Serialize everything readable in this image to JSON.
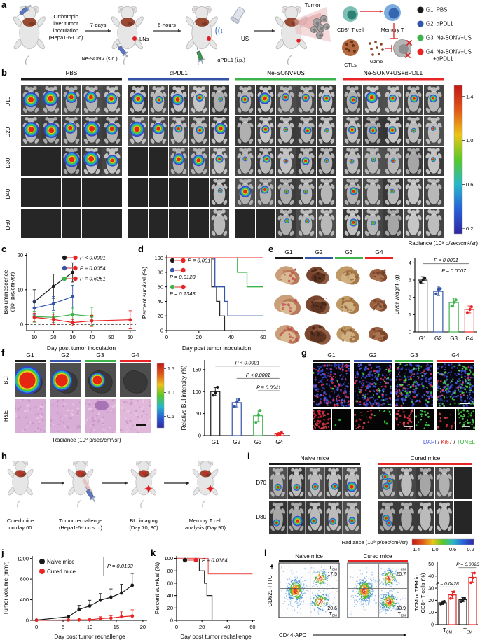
{
  "panels": {
    "a": "a",
    "b": "b",
    "c": "c",
    "d": "d",
    "e": "e",
    "f": "f",
    "g": "g",
    "h": "h",
    "i": "i",
    "j": "j",
    "k": "k",
    "l": "l"
  },
  "groups_short": [
    {
      "name": "G1",
      "color": "#1a1a1a"
    },
    {
      "name": "G2",
      "color": "#3454a8"
    },
    {
      "name": "G3",
      "color": "#3cb44a"
    },
    {
      "name": "G4",
      "color": "#e82424"
    }
  ],
  "panel_a": {
    "intro_lines": [
      "Orthotopic",
      "liver tumor",
      "inoculation",
      "(Hepa1-6-Luc)"
    ],
    "arrow1_label": "7-days",
    "arrow2_label": "6-hours",
    "lns_label": "LNs",
    "nesonv_label": "Ne-SONV (s.c.)",
    "apdl1_label": "αPDL1 (i.p.)",
    "us_label": "US",
    "tumor_label": "Tumor",
    "cd8_label": "CD8⁺ T cell",
    "memory_label": "Memory T",
    "ctls_label": "CTLs",
    "gzmb_label": "Gzmb",
    "legend": [
      {
        "lines": [
          "G1: PBS"
        ],
        "color": "#1a1a1a"
      },
      {
        "lines": [
          "G2: αPDL1"
        ],
        "color": "#3454a8"
      },
      {
        "lines": [
          "G3: Ne-SONV+US"
        ],
        "color": "#3cb44a"
      },
      {
        "lines": [
          "G4: Ne-SONV+US",
          "+αPDL1"
        ],
        "color": "#e82424"
      }
    ]
  },
  "panel_b": {
    "groups": [
      {
        "name": "PBS",
        "color": "#1a1a1a"
      },
      {
        "name": "αPDL1",
        "color": "#3454a8"
      },
      {
        "name": "Ne-SONV+US",
        "color": "#3cb44a"
      },
      {
        "name": "Ne-SONV+US+αPDL1",
        "color": "#e82424"
      }
    ],
    "days": [
      "D10",
      "D20",
      "D30",
      "D40",
      "D60"
    ],
    "grid": [
      [
        [
          4,
          4,
          3,
          3,
          3
        ],
        [
          4,
          4,
          3,
          4,
          3
        ],
        [
          -1,
          -1,
          4,
          4,
          3
        ],
        [
          -1,
          -1,
          -1,
          -1,
          -1
        ],
        [
          -1,
          -1,
          -1,
          -1,
          -1
        ]
      ],
      [
        [
          3,
          2,
          3,
          2,
          1
        ],
        [
          4,
          3,
          2,
          2,
          3
        ],
        [
          -1,
          -1,
          3,
          3,
          2
        ],
        [
          -1,
          -1,
          -1,
          -1,
          1
        ],
        [
          -1,
          -1,
          -1,
          -1,
          0
        ]
      ],
      [
        [
          2,
          3,
          2,
          2,
          2
        ],
        [
          0,
          2,
          1,
          2,
          1
        ],
        [
          1,
          2,
          1,
          2,
          1
        ],
        [
          3,
          2,
          1,
          1,
          0
        ],
        [
          -1,
          -1,
          1,
          1,
          0
        ]
      ],
      [
        [
          2,
          3,
          2,
          2,
          2
        ],
        [
          2,
          2,
          2,
          1,
          1
        ],
        [
          1,
          1,
          1,
          0,
          1
        ],
        [
          2,
          0,
          1,
          0,
          0
        ],
        [
          2,
          1,
          0,
          0,
          0
        ]
      ]
    ],
    "colorbar": {
      "ticks": [
        "1.4",
        "1.0",
        "0.6",
        "0.2"
      ],
      "label": "Radiance (10⁹ p/sec/cm²/sr)",
      "palette": [
        "#c01818",
        "#e05818",
        "#ecc418",
        "#58c828",
        "#28b8c8",
        "#2860d8",
        "#3028a0"
      ]
    }
  },
  "panel_e": {
    "rows": 3
  },
  "panel_f": {
    "row_labels": [
      "BLI",
      "H&E"
    ],
    "bli_levels": [
      4,
      3,
      2,
      0
    ],
    "colorbar": {
      "ticks": [
        "1.5",
        "1.0",
        "0.5"
      ],
      "label": "Radiance (10⁸ p/sec/cm²/sr)"
    }
  },
  "panel_g": {
    "ki67_merged": [
      70,
      48,
      40,
      20
    ],
    "tunel_merged": [
      5,
      26,
      46,
      78
    ],
    "ki67_tile": [
      55,
      22,
      38,
      12
    ],
    "tunel_tile": [
      2,
      10,
      18,
      40
    ],
    "caption": [
      {
        "text": "DAPI",
        "color": "#4858e0"
      },
      {
        "text": " / ",
        "color": "#111111"
      },
      {
        "text": "Ki67",
        "color": "#e82828"
      },
      {
        "text": " / ",
        "color": "#111111"
      },
      {
        "text": "TUNEL",
        "color": "#38b838"
      }
    ]
  },
  "panel_h": {
    "steps": [
      {
        "lines": [
          "Cured mice",
          "on day 60"
        ]
      },
      {
        "lines": [
          "Tumor rechallenge",
          "(Hepa1-6-Luc s.c.)"
        ]
      },
      {
        "lines": [
          "BLI imaging",
          "(Day 70, 80)"
        ]
      },
      {
        "lines": [
          "Memory T cell",
          "analysis (Day 90)"
        ]
      }
    ]
  },
  "panel_i": {
    "groups": [
      {
        "name": "Naive mice",
        "color": "#1a1a1a"
      },
      {
        "name": "Cured mice",
        "color": "#e82424"
      }
    ],
    "days": [
      "D70",
      "D80"
    ],
    "grid_naive": [
      [
        2,
        2,
        2,
        2,
        3
      ],
      [
        2,
        3,
        2,
        2,
        2
      ]
    ],
    "grid_cured": [
      [
        5,
        0,
        0,
        0,
        -1
      ],
      [
        4,
        0,
        0,
        0,
        -1
      ]
    ],
    "colorbar": {
      "ticks": [
        "1.4",
        "1.0",
        "0.6",
        "0.2"
      ],
      "label": "Radiance (10⁹ p/sec/cm²/sr)"
    }
  },
  "panel_l": {
    "plots": [
      {
        "title": "Naive mice",
        "color": "#1a1a1a",
        "tcm_value": "17.5",
        "tem_value": "20.6"
      },
      {
        "title": "Cured mice",
        "color": "#e82424",
        "tcm_value": "20.7",
        "tem_value": "33.9"
      }
    ],
    "tcm_label": "TCM",
    "tem_label": "TEM",
    "xlabel": "CD44-APC",
    "ylabel": "CD62L-FITC"
  },
  "chart_data": [
    {
      "id": "bioluminescence",
      "type": "line",
      "xlabel": "Day post tumor inoculation",
      "ylabel": [
        "Bioluminescence",
        "(10⁷ p/s/cm²/sr)"
      ],
      "xlim": [
        6,
        63
      ],
      "ylim": [
        -1.8,
        20.5
      ],
      "xticks": [
        10,
        20,
        30,
        40,
        50,
        60
      ],
      "yticks": [
        0,
        10,
        20
      ],
      "zero_dashed": true,
      "series": [
        {
          "name": "G1: PBS",
          "color": "#1a1a1a",
          "x": [
            10,
            20,
            30
          ],
          "y": [
            6.5,
            11,
            15
          ],
          "err": [
            3.5,
            3.5,
            2.8
          ]
        },
        {
          "name": "G2: αPDL1",
          "color": "#3454a8",
          "x": [
            10,
            20,
            30
          ],
          "y": [
            4.7,
            6.0,
            8.0
          ],
          "err": [
            2.0,
            2.0,
            3.3
          ]
        },
        {
          "name": "G3: Ne-SONV+US",
          "color": "#3cb44a",
          "x": [
            10,
            20,
            30,
            40
          ],
          "y": [
            2.2,
            2.0,
            2.8,
            2.3
          ],
          "err": [
            1.6,
            1.5,
            1.9,
            2.6
          ]
        },
        {
          "name": "G4: Ne-SONV+US+αPDL1",
          "color": "#e82424",
          "x": [
            10,
            20,
            30,
            40,
            60
          ],
          "y": [
            2.0,
            1.4,
            0.5,
            1.0,
            1.3
          ],
          "err": [
            1.2,
            1.5,
            0.9,
            1.6,
            2.6
          ]
        }
      ],
      "comparisons": [
        {
          "c1": "#1a1a1a",
          "c2": "#e82424",
          "text": "P < 0.0001"
        },
        {
          "c1": "#3454a8",
          "c2": "#e82424",
          "text": "P = 0.0054"
        },
        {
          "c1": "#3cb44a",
          "c2": "#e82424",
          "text": "P = 0.6251"
        }
      ]
    },
    {
      "id": "survival_inoculation",
      "type": "step",
      "xlabel": "Day post tumor inoculation",
      "ylabel": "Percent survival (%)",
      "xlim": [
        0,
        62
      ],
      "ylim": [
        0,
        104
      ],
      "xticks": [
        0,
        20,
        40,
        60
      ],
      "yticks": [
        0,
        20,
        40,
        60,
        80,
        100
      ],
      "series": [
        {
          "name": "G1",
          "color": "#2a2a2a",
          "points": [
            [
              0,
              100
            ],
            [
              28,
              100
            ],
            [
              28,
              60
            ],
            [
              31,
              60
            ],
            [
              31,
              40
            ],
            [
              33,
              40
            ],
            [
              33,
              20
            ],
            [
              36,
              20
            ],
            [
              36,
              0
            ]
          ]
        },
        {
          "name": "G2",
          "color": "#3454a8",
          "points": [
            [
              0,
              100
            ],
            [
              30,
              100
            ],
            [
              30,
              60
            ],
            [
              36,
              60
            ],
            [
              36,
              40
            ],
            [
              38,
              40
            ],
            [
              38,
              20
            ],
            [
              60,
              20
            ]
          ]
        },
        {
          "name": "G3",
          "color": "#3cb44a",
          "points": [
            [
              0,
              100
            ],
            [
              44,
              100
            ],
            [
              44,
              80
            ],
            [
              50,
              80
            ],
            [
              50,
              60
            ],
            [
              60,
              60
            ]
          ]
        },
        {
          "name": "G4",
          "color": "#e82424",
          "points": [
            [
              0,
              100
            ],
            [
              60,
              100
            ]
          ]
        }
      ],
      "comparisons": [
        {
          "c1": "#1a1a1a",
          "c2": "#e82424",
          "text": "P = 0.0017"
        },
        {
          "c1": "#3454a8",
          "c2": "#e82424",
          "text": "P = 0.0128"
        },
        {
          "c1": "#3cb44a",
          "c2": "#e82424",
          "text": "P = 0.1343"
        }
      ]
    },
    {
      "id": "liver_weight",
      "type": "bar",
      "ylabel": "Liver weight (g)",
      "categories": [
        "G1",
        "G2",
        "G3",
        "G4"
      ],
      "colors": [
        "#1a1a1a",
        "#3454a8",
        "#3cb44a",
        "#e82424"
      ],
      "values": [
        3.0,
        2.35,
        1.7,
        1.3
      ],
      "errors": [
        0.2,
        0.25,
        0.25,
        0.2
      ],
      "dots": [
        [
          2.88,
          3.0,
          3.12
        ],
        [
          2.2,
          2.45,
          2.5
        ],
        [
          1.5,
          1.72,
          1.85
        ],
        [
          1.12,
          1.3,
          1.45
        ]
      ],
      "ylim": [
        0,
        4.3
      ],
      "yticks": [
        0,
        1,
        2,
        3,
        4
      ],
      "comparisons": [
        {
          "from": 0,
          "to": 3,
          "y": 3.95,
          "text": "P < 0.0001"
        },
        {
          "from": 1,
          "to": 3,
          "y": 3.35,
          "text": "P = 0.0007"
        }
      ]
    },
    {
      "id": "bli_intensity",
      "type": "bar",
      "ylabel": "Relative BLI intensity (%)",
      "categories": [
        "G1",
        "G2",
        "G3",
        "G4"
      ],
      "colors": [
        "#1a1a1a",
        "#3454a8",
        "#3cb44a",
        "#e82424"
      ],
      "values": [
        100,
        75,
        45,
        4
      ],
      "errors": [
        9,
        10,
        13,
        3
      ],
      "dots": [
        [
          92,
          97,
          110
        ],
        [
          66,
          77,
          82
        ],
        [
          30,
          47,
          57
        ],
        [
          1,
          3,
          7
        ]
      ],
      "ylim": [
        0,
        172
      ],
      "yticks": [
        0,
        50,
        100,
        150
      ],
      "comparisons": [
        {
          "from": 0,
          "to": 3,
          "y": 158,
          "text": "P < 0.0001"
        },
        {
          "from": 1,
          "to": 3,
          "y": 130,
          "text": "P < 0.0001"
        },
        {
          "from": 2,
          "to": 3,
          "y": 102,
          "text": "P = 0.0041"
        }
      ]
    },
    {
      "id": "tumor_volume",
      "type": "line",
      "xlabel": "Day post tumor rechallenge",
      "ylabel": "Tumor volume (mm³)",
      "xlim": [
        -0.8,
        20.8
      ],
      "ylim": [
        0,
        1250
      ],
      "xticks": [
        0,
        5,
        10,
        15,
        20
      ],
      "yticks": [
        0,
        400,
        800,
        1200
      ],
      "pvalue": "P = 0.0193",
      "series": [
        {
          "name": "Naive mice",
          "color": "#1a1a1a",
          "x": [
            0,
            6,
            8,
            10,
            12,
            14,
            16,
            18
          ],
          "y": [
            5,
            70,
            210,
            280,
            390,
            450,
            530,
            680
          ],
          "err": [
            0,
            30,
            80,
            110,
            130,
            160,
            170,
            230
          ]
        },
        {
          "name": "Cured mice",
          "color": "#e82424",
          "x": [
            0,
            6,
            8,
            10,
            12,
            14,
            16,
            18
          ],
          "y": [
            2,
            8,
            10,
            12,
            35,
            45,
            70,
            85
          ],
          "err": [
            0,
            8,
            12,
            15,
            35,
            45,
            95,
            120
          ]
        }
      ]
    },
    {
      "id": "survival_rechallenge",
      "type": "step",
      "xlabel": "Day post tumor rechallenge",
      "ylabel": "Percent survival (%)",
      "xlim": [
        0,
        62
      ],
      "ylim": [
        0,
        104
      ],
      "xticks": [
        0,
        20,
        40,
        60
      ],
      "yticks": [
        0,
        20,
        40,
        60,
        80,
        100
      ],
      "pvalue": "P = 0.0384",
      "series": [
        {
          "name": "Naive mice",
          "color": "#2a2a2a",
          "points": [
            [
              0,
              100
            ],
            [
              18,
              100
            ],
            [
              18,
              80
            ],
            [
              22,
              80
            ],
            [
              22,
              60
            ],
            [
              24,
              60
            ],
            [
              24,
              40
            ],
            [
              28,
              40
            ],
            [
              28,
              0
            ]
          ]
        },
        {
          "name": "Cured mice",
          "color": "#ef6a6a",
          "points": [
            [
              0,
              100
            ],
            [
              25,
              100
            ],
            [
              25,
              75
            ],
            [
              60,
              75
            ]
          ]
        }
      ]
    },
    {
      "id": "tcm_tem",
      "type": "grouped_bar",
      "ylabel": [
        "TCM or TEM in",
        "CD8⁺ T cells (%)"
      ],
      "categories": [
        "TCM",
        "TEM"
      ],
      "ylim": [
        0,
        52
      ],
      "yticks": [
        0,
        10,
        20,
        30,
        40,
        50
      ],
      "series": [
        {
          "name": "Naive mice",
          "color": "#1a1a1a",
          "values": [
            18,
            20.5
          ],
          "errors": [
            1.5,
            1.8
          ],
          "dots": [
            [
              16.8,
              18,
              19.2
            ],
            [
              19,
              20.3,
              22
            ]
          ]
        },
        {
          "name": "Cured mice",
          "color": "#e82424",
          "values": [
            24.5,
            39
          ],
          "errors": [
            3,
            4
          ],
          "dots": [
            [
              21.5,
              24.5,
              27
            ],
            [
              34.5,
              38.5,
              42.5
            ]
          ]
        }
      ],
      "comparisons": [
        {
          "cat": 0,
          "y": 31,
          "text": "P = 0.0428"
        },
        {
          "cat": 1,
          "y": 47,
          "text": "P = 0.0023"
        }
      ]
    }
  ]
}
